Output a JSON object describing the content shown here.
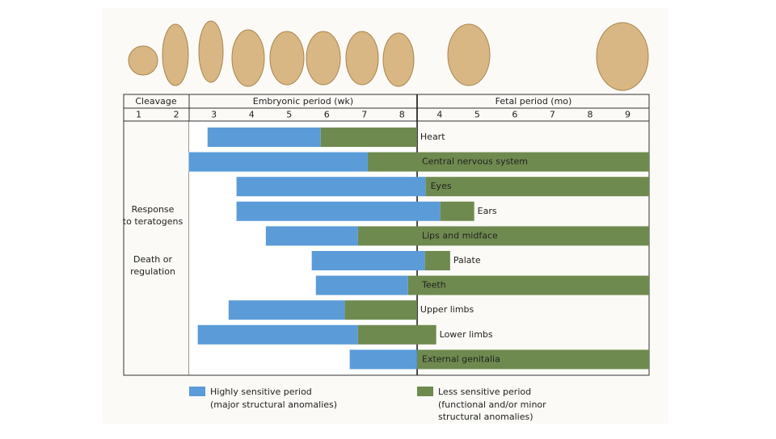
{
  "chart_data": {
    "type": "timeline",
    "headers": [
      "Cleavage",
      "Embryonic period (wk)",
      "Fetal period (mo)"
    ],
    "xlim": [
      0.6,
      14.57
    ],
    "xticks": [
      {
        "value": 1,
        "label": "1"
      },
      {
        "value": 2,
        "label": "2"
      },
      {
        "value": 3,
        "label": "3"
      },
      {
        "value": 4,
        "label": "4"
      },
      {
        "value": 5,
        "label": "5"
      },
      {
        "value": 6,
        "label": "6"
      },
      {
        "value": 7,
        "label": "7"
      },
      {
        "value": 8,
        "label": "8"
      },
      {
        "value": 9,
        "label": "4"
      },
      {
        "value": 10,
        "label": "5"
      },
      {
        "value": 11,
        "label": "6"
      },
      {
        "value": 12,
        "label": "7"
      },
      {
        "value": 13,
        "label": "8"
      },
      {
        "value": 14,
        "label": "9"
      }
    ],
    "side_labels": [
      [
        "Response",
        "to teratogens"
      ],
      [
        "Death or",
        "regulation"
      ]
    ],
    "categories": [
      "Heart",
      "Central nervous system",
      "Eyes",
      "Ears",
      "Lips and midface",
      "Palate",
      "Teeth",
      "Upper limbs",
      "Lower limbs",
      "External genitalia"
    ],
    "series": [
      {
        "name": "Highly sensitive period",
        "description": [
          "(major structural anomalies)"
        ],
        "color": "#5b9bd8",
        "values": [
          [
            2.83,
            5.84
          ],
          [
            2.33,
            7.09
          ],
          [
            3.6,
            8.63
          ],
          [
            3.6,
            9.02
          ],
          [
            4.38,
            6.83
          ],
          [
            5.6,
            8.61
          ],
          [
            5.71,
            8.16
          ],
          [
            3.39,
            6.48
          ],
          [
            2.57,
            6.83
          ],
          [
            6.61,
            8.4
          ]
        ]
      },
      {
        "name": "Less sensitive period",
        "description": [
          "(functional and/or minor",
          "structural anomalies)"
        ],
        "color": "#6f8a4f",
        "values": [
          [
            5.84,
            8.4
          ],
          [
            7.09,
            14.57
          ],
          [
            8.63,
            14.57
          ],
          [
            9.02,
            9.92
          ],
          [
            6.83,
            14.57
          ],
          [
            8.61,
            9.28
          ],
          [
            8.16,
            14.57
          ],
          [
            6.48,
            8.4
          ],
          [
            6.83,
            8.91
          ],
          [
            8.4,
            14.57
          ]
        ]
      }
    ]
  }
}
